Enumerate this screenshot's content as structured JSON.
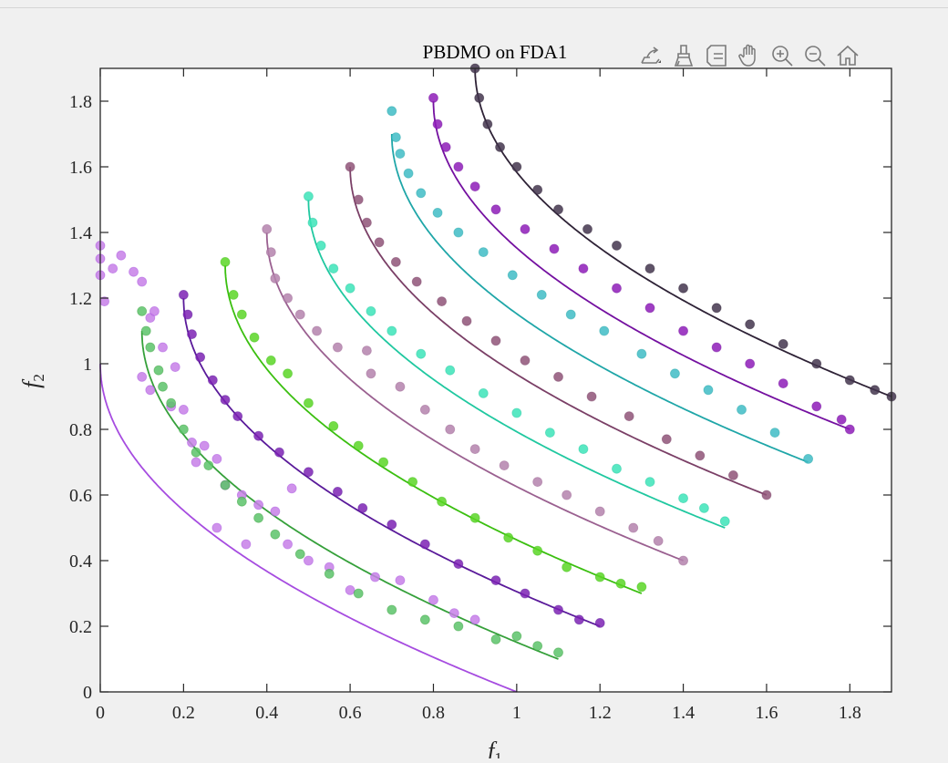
{
  "chart_data": {
    "type": "scatter",
    "title": "PBDMO on FDA1",
    "xlabel": "f1",
    "ylabel": "f2",
    "xlim": [
      0,
      1.9
    ],
    "ylim": [
      0,
      1.9
    ],
    "xticks": [
      0,
      0.2,
      0.4,
      0.6,
      0.8,
      1,
      1.2,
      1.4,
      1.6,
      1.8
    ],
    "yticks": [
      0,
      0.2,
      0.4,
      0.6,
      0.8,
      1,
      1.2,
      1.4,
      1.6,
      1.8
    ],
    "xtick_labels": [
      "0",
      "0.2",
      "0.4",
      "0.6",
      "0.8",
      "1",
      "1.2",
      "1.4",
      "1.6",
      "1.8"
    ],
    "ytick_labels": [
      "0",
      "0.2",
      "0.4",
      "0.6",
      "0.8",
      "1",
      "1.2",
      "1.4",
      "1.6",
      "1.8"
    ],
    "grid": false,
    "series": [
      {
        "shift": 0.0,
        "point_color": "#c77fe8",
        "line_color": "#a64ce0",
        "x": [
          0,
          0,
          0,
          0.01,
          0.05,
          0.08,
          0.1,
          0.12,
          0.15,
          0.18,
          0.1,
          0.12,
          0.2,
          0.22,
          0.25,
          0.28,
          0.3,
          0.34,
          0.38,
          0.42,
          0.45,
          0.5,
          0.55,
          0.6,
          0.72,
          0.8,
          0.85,
          0.9,
          0.28,
          0.35,
          0.03,
          0.13,
          0.17,
          0.23,
          0.46,
          0.66
        ],
        "y": [
          1.36,
          1.32,
          1.27,
          1.19,
          1.33,
          1.28,
          1.25,
          1.14,
          1.05,
          0.99,
          0.96,
          0.92,
          0.86,
          0.76,
          0.75,
          0.71,
          0.63,
          0.6,
          0.57,
          0.55,
          0.45,
          0.4,
          0.38,
          0.31,
          0.34,
          0.28,
          0.24,
          0.22,
          0.5,
          0.45,
          1.29,
          1.16,
          0.87,
          0.7,
          0.62,
          0.35
        ]
      },
      {
        "shift": 0.1,
        "point_color": "#5cc36a",
        "line_color": "#35a03a",
        "x": [
          0.1,
          0.11,
          0.12,
          0.14,
          0.15,
          0.17,
          0.2,
          0.23,
          0.26,
          0.3,
          0.34,
          0.38,
          0.42,
          0.48,
          0.55,
          0.62,
          0.7,
          0.78,
          0.86,
          0.95,
          1.0,
          1.05,
          1.1
        ],
        "y": [
          1.16,
          1.1,
          1.05,
          0.98,
          0.93,
          0.88,
          0.8,
          0.73,
          0.69,
          0.63,
          0.58,
          0.53,
          0.48,
          0.42,
          0.36,
          0.3,
          0.25,
          0.22,
          0.2,
          0.16,
          0.17,
          0.14,
          0.12
        ]
      },
      {
        "shift": 0.2,
        "point_color": "#7d22b4",
        "line_color": "#5a1a9a",
        "x": [
          0.2,
          0.21,
          0.22,
          0.24,
          0.27,
          0.3,
          0.33,
          0.38,
          0.43,
          0.5,
          0.57,
          0.63,
          0.7,
          0.78,
          0.86,
          0.95,
          1.02,
          1.1,
          1.15,
          1.2
        ],
        "y": [
          1.21,
          1.15,
          1.09,
          1.02,
          0.95,
          0.89,
          0.84,
          0.78,
          0.73,
          0.67,
          0.61,
          0.56,
          0.51,
          0.45,
          0.39,
          0.34,
          0.3,
          0.25,
          0.22,
          0.21
        ]
      },
      {
        "shift": 0.3,
        "point_color": "#5bd626",
        "line_color": "#3bbf10",
        "x": [
          0.3,
          0.32,
          0.34,
          0.37,
          0.41,
          0.45,
          0.5,
          0.56,
          0.62,
          0.68,
          0.75,
          0.82,
          0.9,
          0.98,
          1.05,
          1.12,
          1.2,
          1.25,
          1.3
        ],
        "y": [
          1.31,
          1.21,
          1.15,
          1.08,
          1.01,
          0.97,
          0.88,
          0.81,
          0.75,
          0.7,
          0.64,
          0.58,
          0.53,
          0.47,
          0.43,
          0.38,
          0.35,
          0.33,
          0.32
        ]
      },
      {
        "shift": 0.4,
        "point_color": "#b483ad",
        "line_color": "#9a6090",
        "x": [
          0.4,
          0.41,
          0.42,
          0.45,
          0.48,
          0.52,
          0.57,
          0.64,
          0.65,
          0.72,
          0.78,
          0.84,
          0.9,
          0.97,
          1.05,
          1.12,
          1.2,
          1.28,
          1.34,
          1.4
        ],
        "y": [
          1.41,
          1.34,
          1.26,
          1.2,
          1.15,
          1.1,
          1.05,
          1.04,
          0.97,
          0.93,
          0.86,
          0.8,
          0.74,
          0.69,
          0.64,
          0.6,
          0.55,
          0.5,
          0.46,
          0.4
        ]
      },
      {
        "shift": 0.5,
        "point_color": "#3ce4b8",
        "line_color": "#20c8a0",
        "x": [
          0.5,
          0.51,
          0.53,
          0.56,
          0.6,
          0.65,
          0.7,
          0.77,
          0.84,
          0.92,
          1.0,
          1.08,
          1.16,
          1.24,
          1.32,
          1.4,
          1.45,
          1.5
        ],
        "y": [
          1.51,
          1.43,
          1.36,
          1.29,
          1.23,
          1.16,
          1.1,
          1.03,
          0.98,
          0.91,
          0.85,
          0.79,
          0.74,
          0.68,
          0.64,
          0.59,
          0.56,
          0.52
        ]
      },
      {
        "shift": 0.6,
        "point_color": "#8f5378",
        "line_color": "#7a3f66",
        "x": [
          0.6,
          0.62,
          0.64,
          0.67,
          0.71,
          0.76,
          0.82,
          0.88,
          0.95,
          1.02,
          1.1,
          1.18,
          1.27,
          1.36,
          1.44,
          1.52,
          1.6
        ],
        "y": [
          1.6,
          1.5,
          1.43,
          1.37,
          1.31,
          1.25,
          1.19,
          1.13,
          1.07,
          1.01,
          0.96,
          0.9,
          0.84,
          0.77,
          0.72,
          0.66,
          0.6
        ]
      },
      {
        "shift": 0.7,
        "point_color": "#3fbcc6",
        "line_color": "#1fa6a8",
        "x": [
          0.7,
          0.71,
          0.72,
          0.74,
          0.77,
          0.81,
          0.86,
          0.92,
          0.99,
          1.06,
          1.13,
          1.21,
          1.3,
          1.38,
          1.46,
          1.54,
          1.62,
          1.7
        ],
        "y": [
          1.77,
          1.69,
          1.64,
          1.58,
          1.52,
          1.46,
          1.4,
          1.34,
          1.27,
          1.21,
          1.15,
          1.1,
          1.03,
          0.97,
          0.92,
          0.86,
          0.79,
          0.71
        ]
      },
      {
        "shift": 0.8,
        "point_color": "#8e1cb8",
        "line_color": "#7410a0",
        "x": [
          0.8,
          0.81,
          0.83,
          0.86,
          0.9,
          0.95,
          1.02,
          1.09,
          1.16,
          1.24,
          1.32,
          1.4,
          1.48,
          1.56,
          1.64,
          1.72,
          1.78,
          1.8
        ],
        "y": [
          1.81,
          1.73,
          1.66,
          1.6,
          1.54,
          1.47,
          1.41,
          1.35,
          1.29,
          1.23,
          1.17,
          1.1,
          1.05,
          1.0,
          0.94,
          0.87,
          0.83,
          0.8
        ]
      },
      {
        "shift": 0.9,
        "point_color": "#43354d",
        "line_color": "#2e2236",
        "x": [
          0.9,
          0.91,
          0.93,
          0.96,
          1.0,
          1.05,
          1.1,
          1.17,
          1.24,
          1.32,
          1.4,
          1.48,
          1.56,
          1.64,
          1.72,
          1.8,
          1.86,
          1.9
        ],
        "y": [
          1.9,
          1.81,
          1.73,
          1.66,
          1.6,
          1.53,
          1.47,
          1.41,
          1.36,
          1.29,
          1.23,
          1.17,
          1.12,
          1.06,
          1.0,
          0.95,
          0.92,
          0.9
        ]
      }
    ]
  },
  "toolbar": {
    "icons": [
      "export-icon",
      "brush-icon",
      "legend-icon",
      "pan-hand-icon",
      "zoom-in-icon",
      "zoom-out-icon",
      "home-icon"
    ]
  }
}
